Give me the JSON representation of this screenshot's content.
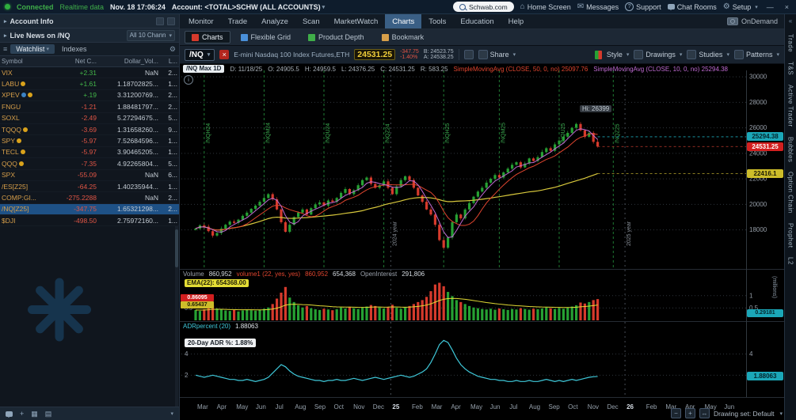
{
  "topbar": {
    "connected": "Connected",
    "realtime": "Realtime data",
    "datetime": "Nov. 18 17:06:24",
    "account": "Account: <TOTAL>SCHW (ALL ACCOUNTS)",
    "search_text": "Schwab.com",
    "home": "Home Screen",
    "messages": "Messages",
    "support": "Support",
    "chat": "Chat Rooms",
    "setup": "Setup"
  },
  "sidebar": {
    "account_info": "Account Info",
    "news_label": "Live News on /NQ",
    "news_channel": "All 10 Chann",
    "tabs": [
      "Watchlist",
      "Indexes"
    ],
    "watchlist": {
      "columns": [
        "Symbol",
        "Net C...",
        "Dollar_Vol...",
        "L..."
      ],
      "rows": [
        {
          "symbol": "VIX",
          "badges": [],
          "net": "+2.31",
          "dollar": "NaN",
          "last": "2...",
          "selected": false
        },
        {
          "symbol": "LABU",
          "badges": [
            "#d9a21b"
          ],
          "net": "+1.61",
          "dollar": "1.18702825...",
          "last": "1...",
          "selected": false
        },
        {
          "symbol": "XPEV",
          "badges": [
            "#3b82c4",
            "#d9a21b"
          ],
          "net": "+.19",
          "dollar": "3.31200769...",
          "last": "2...",
          "selected": false
        },
        {
          "symbol": "FNGU",
          "badges": [],
          "net": "-1.21",
          "dollar": "1.88481797...",
          "last": "2...",
          "selected": false
        },
        {
          "symbol": "SOXL",
          "badges": [],
          "net": "-2.49",
          "dollar": "5.27294675...",
          "last": "5...",
          "selected": false
        },
        {
          "symbol": "TQQQ",
          "badges": [
            "#d9a21b"
          ],
          "net": "-3.69",
          "dollar": "1.31658260...",
          "last": "9...",
          "selected": false
        },
        {
          "symbol": "SPY",
          "badges": [
            "#d9a21b"
          ],
          "net": "-5.97",
          "dollar": "7.52684596...",
          "last": "1...",
          "selected": false
        },
        {
          "symbol": "TECL",
          "badges": [
            "#d9a21b"
          ],
          "net": "-5.97",
          "dollar": "3.90465205...",
          "last": "1...",
          "selected": false
        },
        {
          "symbol": "QQQ",
          "badges": [
            "#d9a21b"
          ],
          "net": "-7.35",
          "dollar": "4.92265804...",
          "last": "5...",
          "selected": false
        },
        {
          "symbol": "SPX",
          "badges": [],
          "net": "-55.09",
          "dollar": "NaN",
          "last": "6...",
          "selected": false
        },
        {
          "symbol": "/ES[Z25]",
          "badges": [],
          "net": "-64.25",
          "dollar": "1.40235944...",
          "last": "1...",
          "selected": false
        },
        {
          "symbol": "COMP:GI...",
          "badges": [],
          "net": "-275.2288",
          "dollar": "NaN",
          "last": "2...",
          "selected": false
        },
        {
          "symbol": "/NQ[Z25]",
          "badges": [],
          "net": "-347.75",
          "dollar": "1.65321298...",
          "last": "2...",
          "selected": true
        },
        {
          "symbol": "$DJI",
          "badges": [],
          "net": "-498.50",
          "dollar": "2.75972160...",
          "last": "1...",
          "selected": false
        }
      ]
    }
  },
  "menu": {
    "tabs": [
      "Monitor",
      "Trade",
      "Analyze",
      "Scan",
      "MarketWatch",
      "Charts",
      "Tools",
      "Education",
      "Help"
    ],
    "active": "Charts",
    "ondemand": "OnDemand"
  },
  "subtabs": [
    {
      "label": "Charts",
      "selected": true,
      "icon": "#d63a2c"
    },
    {
      "label": "Flexible Grid",
      "selected": false,
      "icon": "#4a90d9"
    },
    {
      "label": "Product Depth",
      "selected": false,
      "icon": "#3fae49"
    },
    {
      "label": "Bookmark",
      "selected": false,
      "icon": "#d79f4a"
    }
  ],
  "symtb": {
    "symbol": "/NQ",
    "description": "E-mini Nasdaq 100 Index Futures,ETH",
    "price": "24531.25",
    "change": "-347.75",
    "change_pct": "-1.40%",
    "bid": "B: 24523.75",
    "ask": "A: 24538.25",
    "share": "Share",
    "style": "Style",
    "drawings": "Drawings",
    "studies": "Studies",
    "patterns": "Patterns"
  },
  "chart": {
    "tf_chip": "/NQ Max 1D",
    "ohlc_items": [
      "D: 11/18/25",
      "O: 24905.5",
      "H: 24959.5",
      "L: 24376.25",
      "C: 24531.25",
      "R: 583.25"
    ],
    "smas": [
      {
        "label": "SimpleMovingAvg (CLOSE, 50, 0, no)",
        "value": "25097.76",
        "color": "#e0452f"
      },
      {
        "label": "SimpleMovingAvg (CLOSE, 10, 0, no)",
        "value": "25294.38",
        "color": "#c06bd4"
      }
    ],
    "hi_label": "Hi: 26399",
    "bubbles": {
      "sma10": "25294.38",
      "last": "24531.25",
      "slow": "22416.1"
    }
  },
  "volume_pane": {
    "items": [
      {
        "t": "Volume",
        "c": "#9aa1ab"
      },
      {
        "t": "860,952",
        "c": "#d6dce2"
      },
      {
        "t": "volume1 (22, yes, yes)",
        "c": "#e0452f"
      },
      {
        "t": "860,952",
        "c": "#e0452f"
      },
      {
        "t": "654,368",
        "c": "#d6dce2"
      },
      {
        "t": "OpenInterest",
        "c": "#9aa1ab"
      },
      {
        "t": "291,806",
        "c": "#d6dce2"
      }
    ],
    "ema_tag": "EMA(22): 654368.00",
    "tag_current": "0.86095",
    "tag_ema": "0.65437",
    "oi_bubble": "0.29181",
    "unit": "(millions)"
  },
  "adr_pane": {
    "label": "ADRpercent (20)",
    "value": "1.88063",
    "tag": "20-Day ADR %: 1.88%",
    "bubble": "1.88063"
  },
  "bottom": {
    "drawing_set": "Drawing set: Default"
  },
  "right_rail": {
    "tabs": [
      "Trade",
      "T&S",
      "Active Trader",
      "Bubbles",
      "Option Chain",
      "Prophet",
      "L2"
    ]
  },
  "chart_data": {
    "type": "candlestick",
    "symbol": "/NQ",
    "timeframe": "Max 1D",
    "price_ticks": [
      30000,
      28000,
      26000,
      24000,
      22000,
      20000,
      18000
    ],
    "volume_ticks": [
      1,
      0.5
    ],
    "adr_ticks": [
      4,
      2
    ],
    "closes": [
      18100,
      18350,
      18250,
      17900,
      17550,
      17750,
      18100,
      18400,
      18650,
      18550,
      18800,
      19100,
      19350,
      19650,
      19900,
      20200,
      20500,
      20800,
      20400,
      19600,
      18600,
      17850,
      18400,
      19000,
      19350,
      19600,
      19200,
      19700,
      20000,
      20150,
      19900,
      20300,
      20200,
      20500,
      20900,
      21200,
      20800,
      21100,
      21500,
      21900,
      22100,
      21600,
      21300,
      21500,
      21800,
      21300,
      20800,
      21400,
      21900,
      22200,
      21900,
      21300,
      20700,
      20200,
      19600,
      19200,
      18400,
      17200,
      16600,
      17400,
      18600,
      19200,
      18900,
      19600,
      20100,
      20600,
      21000,
      21300,
      21700,
      22000,
      22300,
      22100,
      22500,
      22800,
      23100,
      23300,
      22900,
      23200,
      23600,
      23400,
      23700,
      24100,
      24400,
      24200,
      24700,
      25000,
      25300,
      25600,
      26000,
      26300,
      25800,
      25300,
      25600,
      24900,
      24531
    ],
    "volumes_millions": [
      0.42,
      0.38,
      0.45,
      0.52,
      0.61,
      0.48,
      0.44,
      0.4,
      0.38,
      0.42,
      0.36,
      0.4,
      0.44,
      0.41,
      0.39,
      0.43,
      0.47,
      0.52,
      0.66,
      0.88,
      1.12,
      1.35,
      0.92,
      0.74,
      0.61,
      0.52,
      0.58,
      0.49,
      0.45,
      0.42,
      0.47,
      0.44,
      0.41,
      0.45,
      0.52,
      0.48,
      0.55,
      0.49,
      0.46,
      0.51,
      0.56,
      0.62,
      0.58,
      0.52,
      0.48,
      0.55,
      0.63,
      0.51,
      0.47,
      0.52,
      0.58,
      0.66,
      0.74,
      0.82,
      0.95,
      1.18,
      1.45,
      1.52,
      1.38,
      1.15,
      0.98,
      0.82,
      0.74,
      0.66,
      0.58,
      0.52,
      0.49,
      0.46,
      0.44,
      0.47,
      0.43,
      0.48,
      0.45,
      0.42,
      0.46,
      0.44,
      0.49,
      0.46,
      0.43,
      0.47,
      0.45,
      0.48,
      0.52,
      0.49,
      0.46,
      0.5,
      0.47,
      0.52,
      0.56,
      0.61,
      0.72,
      0.68,
      0.74,
      0.82,
      0.86
    ],
    "adr_percent": [
      2.0,
      1.9,
      1.8,
      1.9,
      2.0,
      1.9,
      1.8,
      1.7,
      1.6,
      1.6,
      1.5,
      1.5,
      1.6,
      1.5,
      1.4,
      1.5,
      1.6,
      1.8,
      2.2,
      2.6,
      3.0,
      2.8,
      2.4,
      2.1,
      1.9,
      1.8,
      1.7,
      1.6,
      1.5,
      1.5,
      1.4,
      1.5,
      1.5,
      1.6,
      1.5,
      1.5,
      1.6,
      1.7,
      1.6,
      1.5,
      1.6,
      1.7,
      1.8,
      1.7,
      1.6,
      1.7,
      1.8,
      1.9,
      2.0,
      1.9,
      1.8,
      1.9,
      2.1,
      2.3,
      2.6,
      3.2,
      4.0,
      4.9,
      5.3,
      5.1,
      4.4,
      3.6,
      3.0,
      2.6,
      2.3,
      2.1,
      1.9,
      1.8,
      1.7,
      1.6,
      1.6,
      1.5,
      1.5,
      1.4,
      1.4,
      1.5,
      1.4,
      1.4,
      1.5,
      1.4,
      1.4,
      1.5,
      1.6,
      1.5,
      1.4,
      1.5,
      1.4,
      1.5,
      1.6,
      1.5,
      1.6,
      1.7,
      1.8,
      1.85,
      1.88
    ],
    "hi_point": {
      "index": 89,
      "value": 26399
    },
    "contract_rolls": [
      {
        "index": 2,
        "label": "/NQH24"
      },
      {
        "index": 16,
        "label": "/NQM24"
      },
      {
        "index": 30,
        "label": "/NQU24"
      },
      {
        "index": 44,
        "label": "/NQZ24"
      },
      {
        "index": 58,
        "label": "/NQH25"
      },
      {
        "index": 71,
        "label": "/NQM25"
      },
      {
        "index": 85,
        "label": "/NQU25"
      }
    ],
    "future_rolls": [
      {
        "month": 21.4,
        "label": "/NQZ25"
      }
    ],
    "year_marks": [
      {
        "month": 10,
        "label": "2024 year"
      },
      {
        "month": 22,
        "label": "2025 year"
      }
    ],
    "months": [
      {
        "t": "Mar",
        "m": 0
      },
      {
        "t": "Apr",
        "m": 1
      },
      {
        "t": "May",
        "m": 2
      },
      {
        "t": "Jun",
        "m": 3
      },
      {
        "t": "Jul",
        "m": 4
      },
      {
        "t": "Aug",
        "m": 5
      },
      {
        "t": "Sep",
        "m": 6
      },
      {
        "t": "Oct",
        "m": 7
      },
      {
        "t": "Nov",
        "m": 8
      },
      {
        "t": "Dec",
        "m": 9
      },
      {
        "t": "25",
        "m": 10,
        "year": true
      },
      {
        "t": "Feb",
        "m": 11
      },
      {
        "t": "Mar",
        "m": 12
      },
      {
        "t": "Apr",
        "m": 13
      },
      {
        "t": "May",
        "m": 14
      },
      {
        "t": "Jun",
        "m": 15
      },
      {
        "t": "Jul",
        "m": 16
      },
      {
        "t": "Aug",
        "m": 17
      },
      {
        "t": "Sep",
        "m": 18
      },
      {
        "t": "Oct",
        "m": 19
      },
      {
        "t": "Nov",
        "m": 20
      },
      {
        "t": "Dec",
        "m": 21
      },
      {
        "t": "26",
        "m": 22,
        "year": true
      },
      {
        "t": "Feb",
        "m": 23
      },
      {
        "t": "Mar",
        "m": 24
      },
      {
        "t": "Apr",
        "m": 25
      },
      {
        "t": "May",
        "m": 26
      },
      {
        "t": "Jun",
        "m": 27
      }
    ]
  }
}
